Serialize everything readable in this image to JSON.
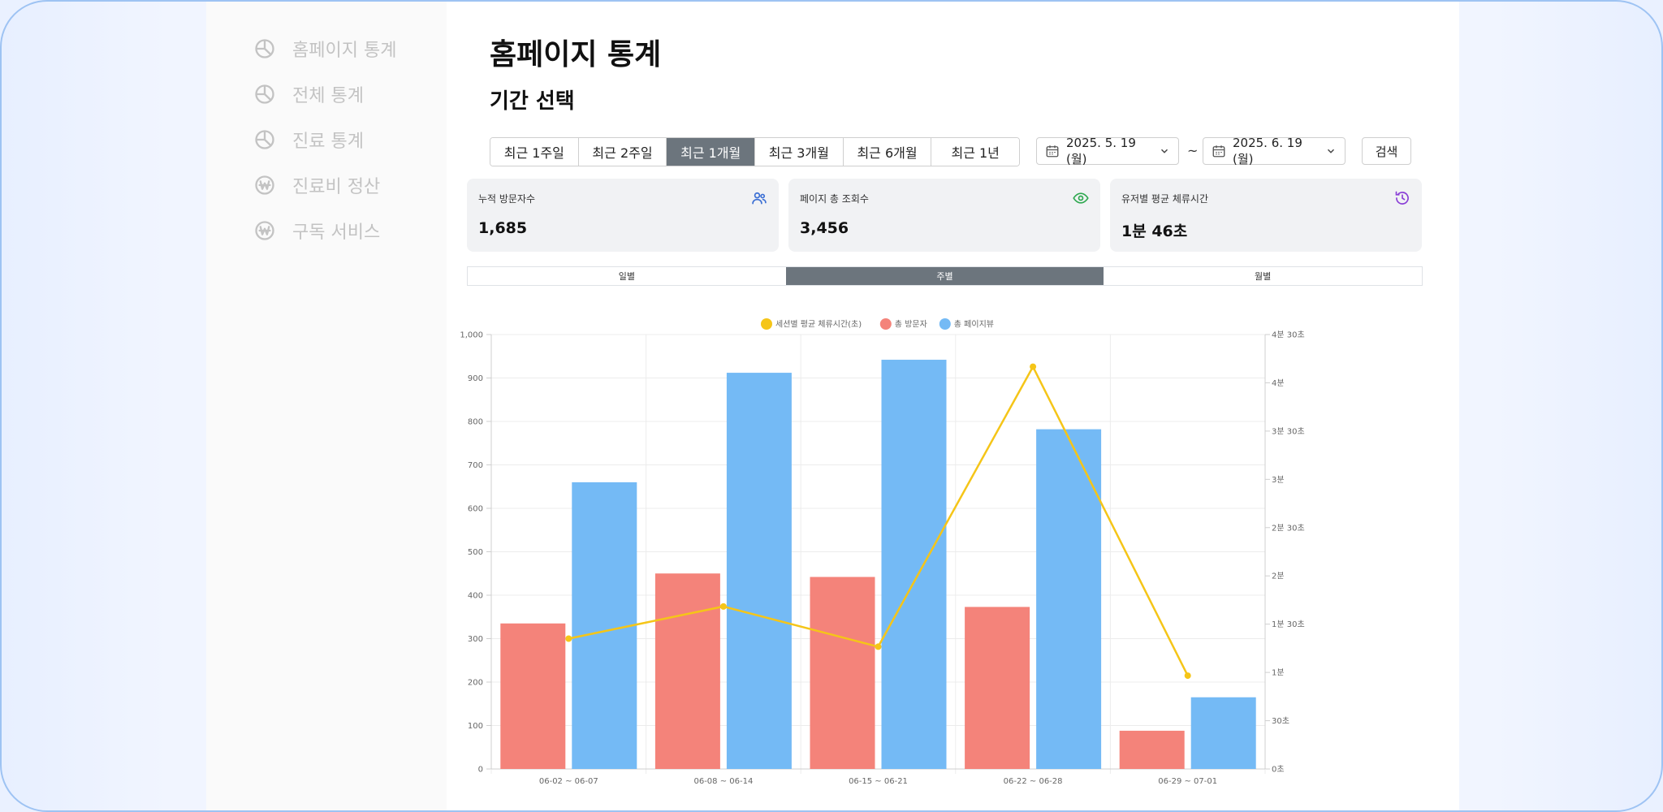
{
  "sidebar": {
    "items": [
      {
        "label": "홈페이지 통계",
        "icon": "pie-chart-icon",
        "active": true
      },
      {
        "label": "전체 통계",
        "icon": "pie-chart-icon",
        "active": false
      },
      {
        "label": "진료 통계",
        "icon": "pie-chart-icon",
        "active": false
      },
      {
        "label": "진료비 정산",
        "icon": "won-coin-icon",
        "active": false
      },
      {
        "label": "구독 서비스",
        "icon": "won-coin-icon",
        "active": false
      }
    ]
  },
  "header": {
    "title": "홈페이지 통계",
    "section_title": "기간 선택"
  },
  "filters": {
    "ranges": [
      "최근 1주일",
      "최근 2주일",
      "최근 1개월",
      "최근 3개월",
      "최근 6개월",
      "최근 1년"
    ],
    "selected_range": "최근 1개월",
    "start_date": "2025. 5. 19 (월)",
    "separator": "~",
    "end_date": "2025. 6. 19 (월)",
    "search_label": "검색"
  },
  "stats": [
    {
      "label": "누적 방문자수",
      "value": "1,685",
      "icon": "users-icon",
      "color": "#3b6fd4"
    },
    {
      "label": "페이지 총 조회수",
      "value": "3,456",
      "icon": "eye-icon",
      "color": "#2ea84f"
    },
    {
      "label": "유저별 평균 체류시간",
      "value": "1분 46초",
      "icon": "history-icon",
      "color": "#8a3fd6"
    }
  ],
  "period_tabs": [
    "일별",
    "주별",
    "월별"
  ],
  "selected_period": "주별",
  "colors": {
    "visitors": "#f4837a",
    "pageviews": "#74baf5",
    "session_time": "#f5c518",
    "active_tab": "#6c757d"
  },
  "chart_data": {
    "type": "bar",
    "categories": [
      "06-02 ~ 06-07",
      "06-08 ~ 06-14",
      "06-15 ~ 06-21",
      "06-22 ~ 06-28",
      "06-29 ~ 07-01"
    ],
    "series": [
      {
        "name": "총 방문자",
        "type": "bar",
        "axis": "left",
        "values": [
          335,
          450,
          442,
          373,
          88
        ]
      },
      {
        "name": "총 페이지뷰",
        "type": "bar",
        "axis": "left",
        "values": [
          660,
          912,
          942,
          782,
          165
        ]
      },
      {
        "name": "세션별 평균 체류시간(초)",
        "type": "line",
        "axis": "right",
        "values": [
          81,
          101,
          76,
          250,
          58
        ]
      }
    ],
    "legend": {
      "position": "top-center",
      "order": [
        "세션별 평균 체류시간(초)",
        "총 방문자",
        "총 페이지뷰"
      ]
    },
    "y_left": {
      "min": 0,
      "max": 1000,
      "ticks": [
        "0",
        "100",
        "200",
        "300",
        "400",
        "500",
        "600",
        "700",
        "800",
        "900",
        "1,000"
      ]
    },
    "y_right": {
      "min": 0,
      "max": 270,
      "ticks": [
        "0초",
        "30초",
        "1분",
        "1분 30초",
        "2분",
        "2분 30초",
        "3분",
        "3분 30초",
        "4분",
        "4분 30초"
      ]
    },
    "grid": true
  }
}
